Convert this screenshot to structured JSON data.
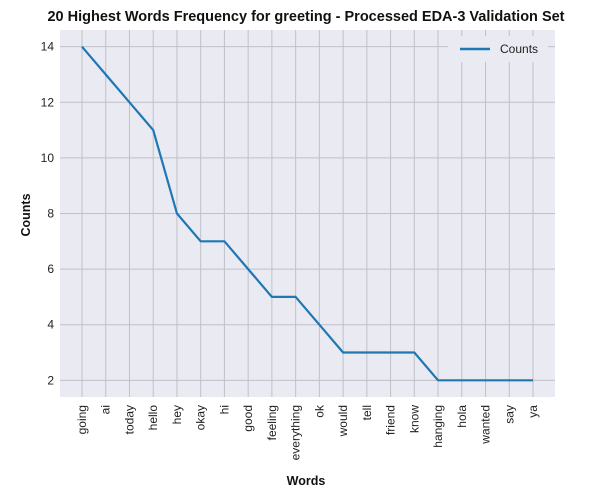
{
  "chart_data": {
    "type": "line",
    "title": "20 Highest Words Frequency for greeting - Processed EDA-3 Validation Set",
    "xlabel": "Words",
    "ylabel": "Counts",
    "categories": [
      "going",
      "ai",
      "today",
      "hello",
      "hey",
      "okay",
      "hi",
      "good",
      "feeling",
      "everything",
      "ok",
      "would",
      "tell",
      "friend",
      "know",
      "hanging",
      "hola",
      "wanted",
      "say",
      "ya"
    ],
    "series": [
      {
        "name": "Counts",
        "values": [
          14,
          13,
          12,
          11,
          8,
          7,
          7,
          6,
          5,
          5,
          4,
          3,
          3,
          3,
          3,
          2,
          2,
          2,
          2,
          2
        ]
      }
    ],
    "yticks": [
      2,
      4,
      6,
      8,
      10,
      12,
      14
    ],
    "ylim": [
      1.4,
      14.6
    ],
    "grid": true,
    "legend_position": "top-right",
    "colors": {
      "line": "#1f77b4",
      "plot_bg": "#eaeaf2",
      "grid": "#c0c0c8"
    }
  }
}
